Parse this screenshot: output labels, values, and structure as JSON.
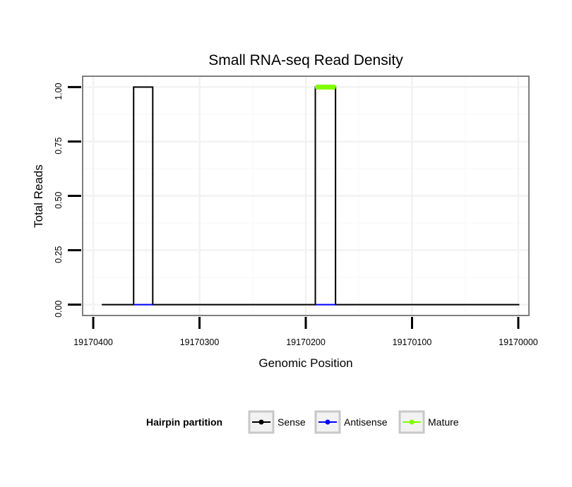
{
  "chart_data": {
    "type": "line",
    "title": "Small RNA-seq Read Density",
    "xlabel": "Genomic Position",
    "ylabel": "Total Reads",
    "x_reversed": true,
    "xlim": [
      19170410,
      19169990
    ],
    "ylim": [
      -0.05,
      1.05
    ],
    "x_ticks": [
      19170400,
      19170300,
      19170200,
      19170100,
      19170000
    ],
    "x_tick_labels": [
      "19170400",
      "19170300",
      "19170200",
      "19170100",
      "19170000"
    ],
    "y_ticks": [
      0,
      0.25,
      0.5,
      0.75,
      1.0
    ],
    "y_tick_labels": [
      "0.00",
      "0.25",
      "0.50",
      "0.75",
      "1.00"
    ],
    "grid": true,
    "legend_position": "bottom",
    "legend_title": "Hairpin partition",
    "series": [
      {
        "name": "Sense",
        "color": "#000000",
        "points": [
          [
            19170392,
            0
          ],
          [
            19170362,
            0
          ],
          [
            19170362,
            1
          ],
          [
            19170344,
            1
          ],
          [
            19170344,
            0
          ],
          [
            19170191,
            0
          ],
          [
            19170191,
            1
          ],
          [
            19170172,
            1
          ],
          [
            19170172,
            0
          ],
          [
            19169999,
            0
          ]
        ]
      },
      {
        "name": "Antisense",
        "color": "#0000ff",
        "points": [
          [
            19170362,
            0
          ],
          [
            19170344,
            0
          ],
          [
            19170191,
            0
          ],
          [
            19170172,
            0
          ]
        ],
        "segments": [
          [
            0,
            1
          ],
          [
            2,
            3
          ]
        ]
      },
      {
        "name": "Mature",
        "color": "#7fff00",
        "points": [
          [
            19170189,
            1
          ],
          [
            19170174,
            1
          ]
        ]
      }
    ]
  }
}
